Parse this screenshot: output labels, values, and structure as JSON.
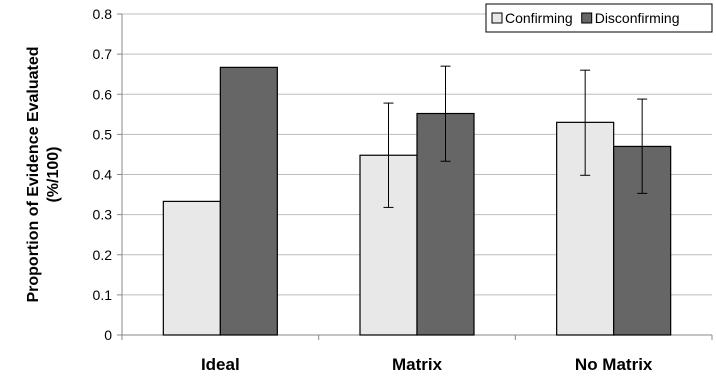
{
  "chart_data": {
    "type": "bar",
    "title": "",
    "xlabel": "",
    "ylabel": "Proportion of Evidence Evaluated (%/100)",
    "ylabel_lines": [
      "Proportion of Evidence Evaluated",
      "(%/100)"
    ],
    "ylim": [
      0,
      0.8
    ],
    "yticks": [
      0,
      0.1,
      0.2,
      0.3,
      0.4,
      0.5,
      0.6,
      0.7,
      0.8
    ],
    "ytick_labels": [
      "0",
      "0.1",
      "0.2",
      "0.3",
      "0.4",
      "0.5",
      "0.6",
      "0.7",
      "0.8"
    ],
    "grid": true,
    "legend_position": "top-right",
    "categories": [
      "Ideal",
      "Matrix",
      "No Matrix"
    ],
    "series": [
      {
        "name": "Confirming",
        "color": "#e8e8e8",
        "values": [
          0.333,
          0.448,
          0.53
        ],
        "error_low": [
          null,
          0.318,
          0.398
        ],
        "error_high": [
          null,
          0.578,
          0.66
        ]
      },
      {
        "name": "Disconfirming",
        "color": "#666666",
        "values": [
          0.667,
          0.552,
          0.47
        ],
        "error_low": [
          null,
          0.433,
          0.353
        ],
        "error_high": [
          null,
          0.67,
          0.588
        ]
      }
    ]
  }
}
